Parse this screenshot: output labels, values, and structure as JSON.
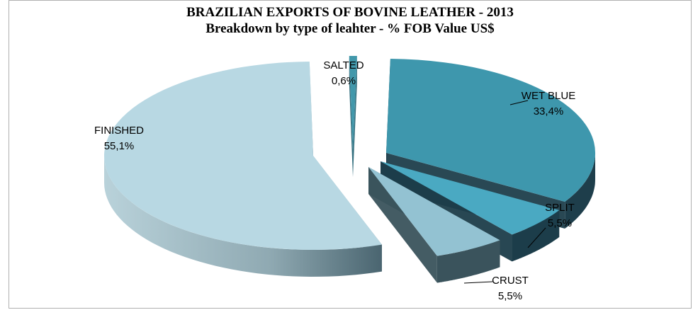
{
  "chart_data": {
    "type": "pie",
    "title": "BRAZILIAN EXPORTS OF BOVINE LEATHER -  2013",
    "subtitle": "Breakdown by type of leahter - % FOB Value US$",
    "slices": [
      {
        "label": "WET BLUE",
        "value": 33.4,
        "value_text": "33,4%",
        "color": "#3e97ad"
      },
      {
        "label": "SPLIT",
        "value": 5.5,
        "value_text": "5,5%",
        "color": "#4aa9c2"
      },
      {
        "label": "CRUST",
        "value": 5.5,
        "value_text": "5,5%",
        "color": "#93c2d2"
      },
      {
        "label": "FINISHED",
        "value": 55.1,
        "value_text": "55,1%",
        "color": "#b8d8e3"
      },
      {
        "label": "SALTED",
        "value": 0.6,
        "value_text": "0,6%",
        "color": "#4298ab"
      }
    ],
    "style": "3d-exploded"
  }
}
